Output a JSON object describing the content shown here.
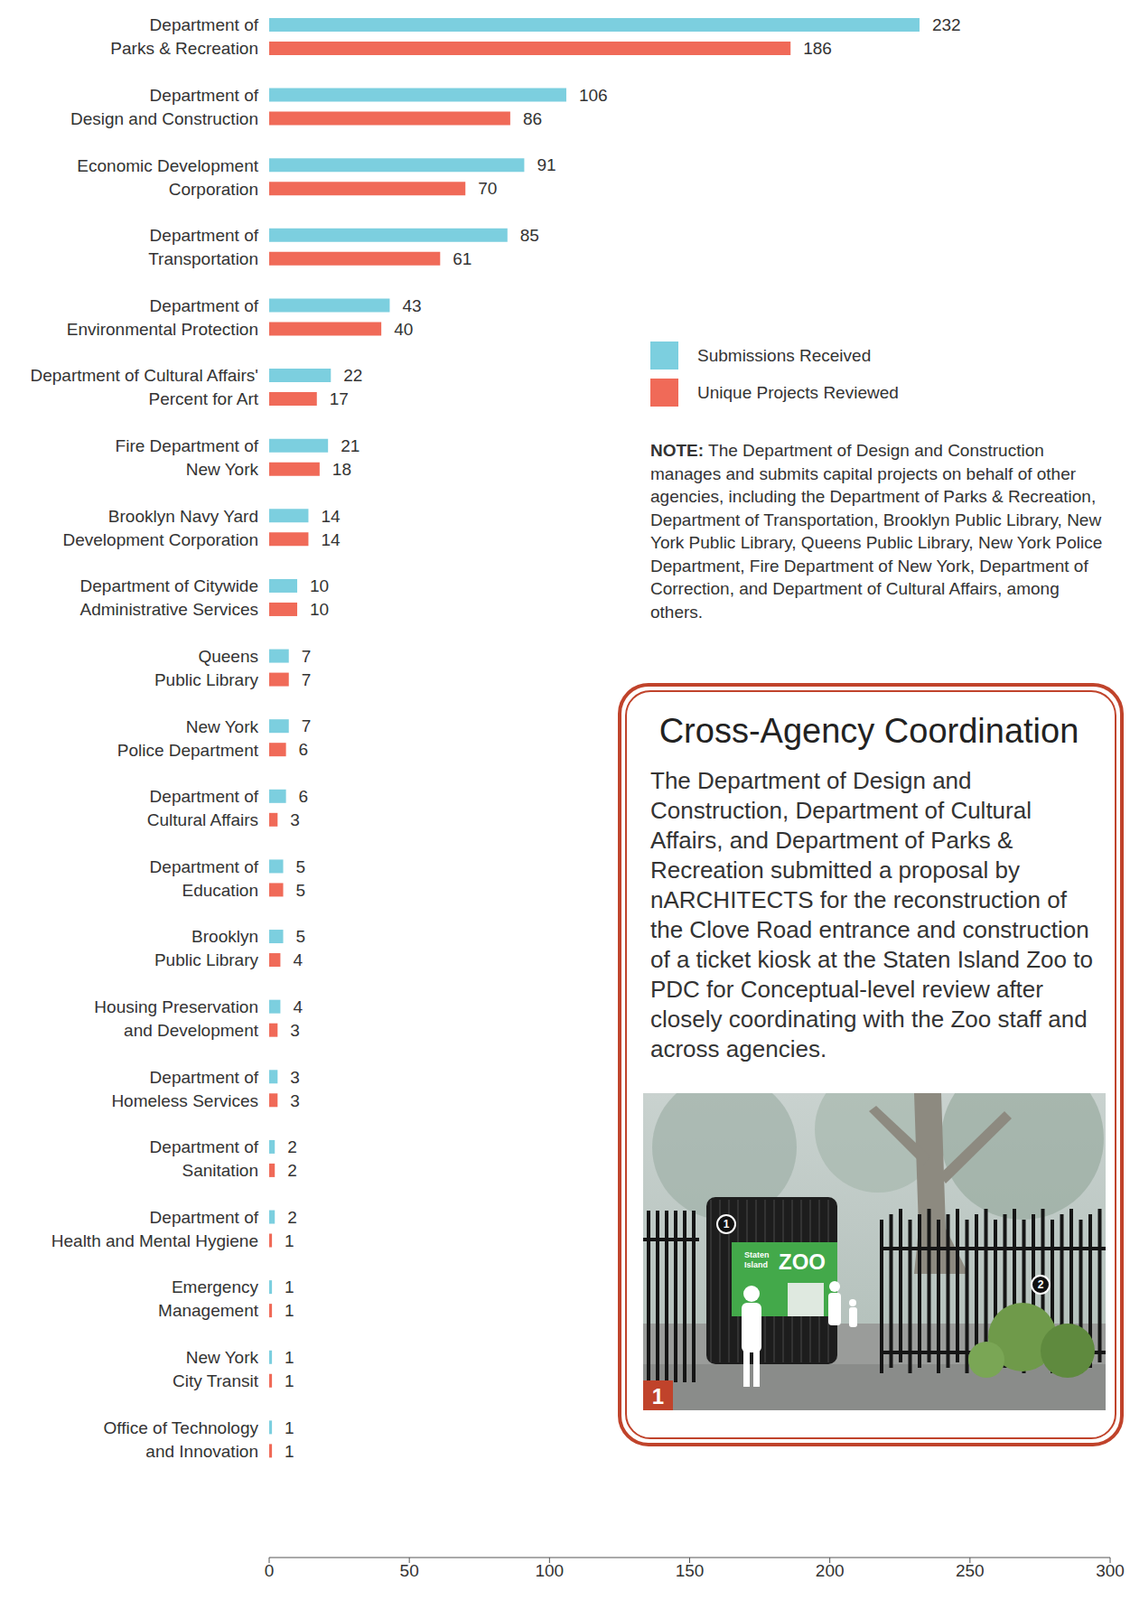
{
  "chart_data": {
    "type": "bar",
    "orientation": "horizontal",
    "categories": [
      "Department of Parks & Recreation",
      "Department of Design and Construction",
      "Economic Development Corporation",
      "Department of Transportation",
      "Department of Environmental Protection",
      "Department of Cultural Affairs' Percent for Art",
      "Fire Department of New York",
      "Brooklyn Navy Yard Development Corporation",
      "Department of Citywide Administrative Services",
      "Queens Public Library",
      "New York Police Department",
      "Department of Cultural Affairs",
      "Department of Education",
      "Brooklyn Public Library",
      "Housing Preservation and Development",
      "Department of Homeless Services",
      "Department of Sanitation",
      "Department of Health and Mental Hygiene",
      "Emergency Management",
      "New York City Transit",
      "Office of Technology and Innovation"
    ],
    "series": [
      {
        "name": "Submissions Received",
        "color": "#7ccfdf",
        "values": [
          232,
          106,
          91,
          85,
          43,
          22,
          21,
          14,
          10,
          7,
          7,
          6,
          5,
          5,
          4,
          3,
          2,
          2,
          1,
          1,
          1
        ]
      },
      {
        "name": "Unique Projects Reviewed",
        "color": "#f06a58",
        "values": [
          186,
          86,
          70,
          61,
          40,
          17,
          18,
          14,
          10,
          7,
          6,
          3,
          5,
          4,
          3,
          3,
          2,
          1,
          1,
          1,
          1
        ]
      }
    ],
    "xlim": [
      0,
      300
    ],
    "xticks": [
      0,
      50,
      100,
      150,
      200,
      250,
      300
    ],
    "data_labels": true,
    "grid": false,
    "legend": "right"
  },
  "note": {
    "label": "NOTE:",
    "text": "The Department of Design and Construction manages and submits capital projects on behalf of other agencies, including the Department of Parks & Recreation, Department of Transportation, Brooklyn Public Library, New York Public Library, Queens Public Library, New York Police Department, Fire Department of New York, Department of Correction, and Department of Cultural Affairs, among others."
  },
  "callout": {
    "title": "Cross-Agency Coordination",
    "text": "The Department of Design and Construction, Department of Cultural Affairs, and Department of Parks & Recreation submitted a proposal by nARCHITECTS for the reconstruction of the Clove Road entrance and construction of a ticket kiosk at the Staten Island Zoo to PDC for Conceptual-level review after closely coordinating with the Zoo staff and across agencies.",
    "image": {
      "figure_label": "1",
      "markers": [
        "1",
        "2"
      ],
      "sign": [
        "Staten Island",
        "ZOO"
      ]
    }
  }
}
